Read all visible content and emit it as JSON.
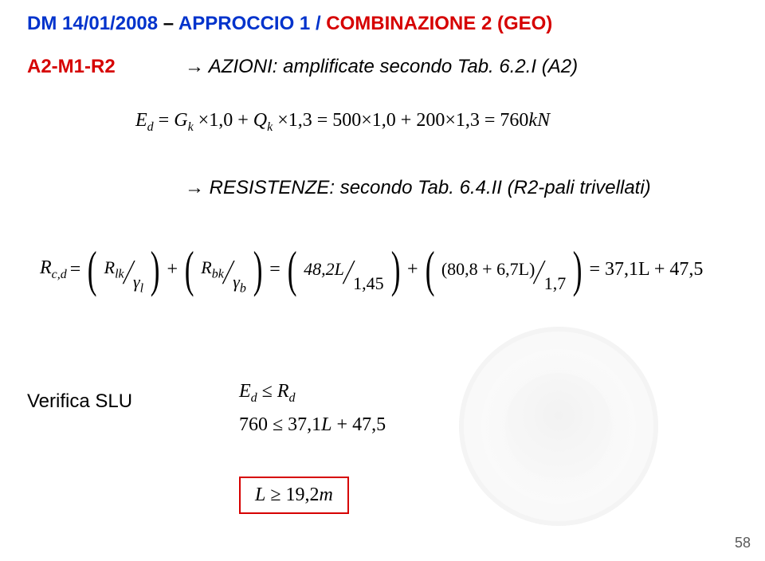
{
  "title": {
    "dm": "DM 14/01/2008",
    "dash": " – ",
    "approccio": "APPROCCIO 1 / ",
    "combinazione": "COMBINAZIONE 2 (GEO)"
  },
  "code": "A2-M1-R2",
  "azioni": "→ AZIONI: amplificate secondo Tab. 6.2.I (A2)",
  "eq1": {
    "lhs": "E",
    "lhs_sub": "d",
    "rhs": " = G_k × 1,0 + Q_k × 1,3 = 500 × 1,0 + 200 × 1,3 = 760kN"
  },
  "resistenze": "→ RESISTENZE: secondo Tab. 6.4.II (R2-pali trivellati)",
  "eq2": {
    "Rcd_lhs": "R",
    "Rcd_sub": "c,d",
    "frac1_num": "R",
    "frac1_num_sub": "lk",
    "frac1_den": "γ",
    "frac1_den_sub": "l",
    "frac2_num": "R",
    "frac2_num_sub": "bk",
    "frac2_den": "γ",
    "frac2_den_sub": "b",
    "frac3_num": "48,2L",
    "frac3_den": "1,45",
    "frac4_num": "(80,8 + 6,7L)",
    "frac4_den": "1,7",
    "rhs": "= 37,1L + 47,5"
  },
  "verify_label": "Verifica SLU",
  "verify1_l": "E",
  "verify1_lsub": "d",
  "verify1_op": " ≤ ",
  "verify1_r": "R",
  "verify1_rsub": "d",
  "verify2": "760 ≤ 37,1L + 47,5",
  "boxed": "L ≥ 19,2m",
  "pagenum": "58",
  "colors": {
    "blue": "#0033cc",
    "red": "#d60000",
    "text": "#000000",
    "pagenum": "#5a5a5a"
  }
}
